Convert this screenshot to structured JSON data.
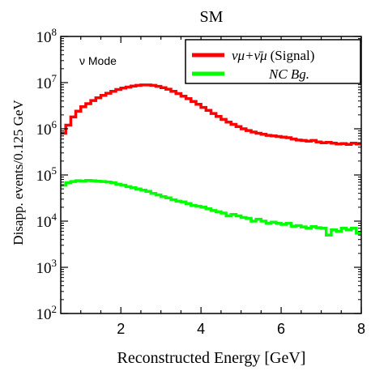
{
  "chart_data": {
    "type": "line",
    "title": "SM",
    "xlabel": "Reconstructed Energy [GeV]",
    "ylabel": "Disapp. events/0.125 GeV",
    "annotation": "ν Mode",
    "xlim": [
      0.5,
      8.0
    ],
    "ylim": [
      100,
      100000000
    ],
    "yscale": "log",
    "x_ticks": [
      "2",
      "4",
      "6",
      "8"
    ],
    "y_ticks": [
      {
        "base": "10",
        "exp": "2"
      },
      {
        "base": "10",
        "exp": "3"
      },
      {
        "base": "10",
        "exp": "4"
      },
      {
        "base": "10",
        "exp": "5"
      },
      {
        "base": "10",
        "exp": "6"
      },
      {
        "base": "10",
        "exp": "7"
      },
      {
        "base": "10",
        "exp": "8"
      }
    ],
    "legend_position": "top-right",
    "series": [
      {
        "name": "ν_μ+ν̄_μ (Signal)",
        "legend_main": "νμ+ν̄μ",
        "legend_suffix": "(Signal)",
        "color": "#ff0000",
        "x": [
          0.5,
          0.625,
          0.75,
          0.875,
          1.0,
          1.125,
          1.25,
          1.375,
          1.5,
          1.625,
          1.75,
          1.875,
          2.0,
          2.125,
          2.25,
          2.375,
          2.5,
          2.625,
          2.75,
          2.875,
          3.0,
          3.125,
          3.25,
          3.375,
          3.5,
          3.625,
          3.75,
          3.875,
          4.0,
          4.125,
          4.25,
          4.375,
          4.5,
          4.625,
          4.75,
          4.875,
          5.0,
          5.125,
          5.25,
          5.375,
          5.5,
          5.625,
          5.75,
          5.875,
          6.0,
          6.125,
          6.25,
          6.375,
          6.5,
          6.625,
          6.75,
          6.875,
          7.0,
          7.125,
          7.25,
          7.375,
          7.5,
          7.625,
          7.75,
          7.875
        ],
        "values": [
          800000,
          1200000,
          1800000,
          2400000,
          3000000,
          3500000,
          4100000,
          4700000,
          5300000,
          5900000,
          6500000,
          7100000,
          7600000,
          8000000,
          8400000,
          8700000,
          8900000,
          8900000,
          8700000,
          8300000,
          7800000,
          7200000,
          6500000,
          5800000,
          5100000,
          4500000,
          3900000,
          3400000,
          2900000,
          2500000,
          2150000,
          1850000,
          1600000,
          1400000,
          1250000,
          1120000,
          1000000,
          920000,
          850000,
          800000,
          760000,
          720000,
          700000,
          680000,
          660000,
          640000,
          600000,
          570000,
          560000,
          540000,
          560000,
          520000,
          500000,
          510000,
          490000,
          470000,
          480000,
          460000,
          490000,
          470000
        ]
      },
      {
        "name": "NC Bg.",
        "legend_main": "NC Bg.",
        "legend_suffix": "",
        "color": "#00ff00",
        "x": [
          0.5,
          0.625,
          0.75,
          0.875,
          1.0,
          1.125,
          1.25,
          1.375,
          1.5,
          1.625,
          1.75,
          1.875,
          2.0,
          2.125,
          2.25,
          2.375,
          2.5,
          2.625,
          2.75,
          2.875,
          3.0,
          3.125,
          3.25,
          3.375,
          3.5,
          3.625,
          3.75,
          3.875,
          4.0,
          4.125,
          4.25,
          4.375,
          4.5,
          4.625,
          4.75,
          4.875,
          5.0,
          5.125,
          5.25,
          5.375,
          5.5,
          5.625,
          5.75,
          5.875,
          6.0,
          6.125,
          6.25,
          6.375,
          6.5,
          6.625,
          6.75,
          6.875,
          7.0,
          7.125,
          7.25,
          7.375,
          7.5,
          7.625,
          7.75,
          7.875
        ],
        "values": [
          60000,
          68000,
          72000,
          75000,
          74000,
          76000,
          75000,
          73000,
          72000,
          70000,
          68000,
          63000,
          60000,
          56000,
          53000,
          50000,
          47000,
          44000,
          40000,
          37000,
          34000,
          32000,
          29000,
          27000,
          26000,
          24000,
          22000,
          21000,
          20000,
          18500,
          17000,
          16000,
          15000,
          13000,
          14000,
          13000,
          12000,
          11500,
          10000,
          11000,
          10000,
          9000,
          9500,
          9000,
          8500,
          9000,
          7800,
          8000,
          7500,
          7000,
          7600,
          7200,
          7000,
          5000,
          6500,
          6000,
          7000,
          6500,
          7000,
          5500
        ]
      }
    ]
  }
}
